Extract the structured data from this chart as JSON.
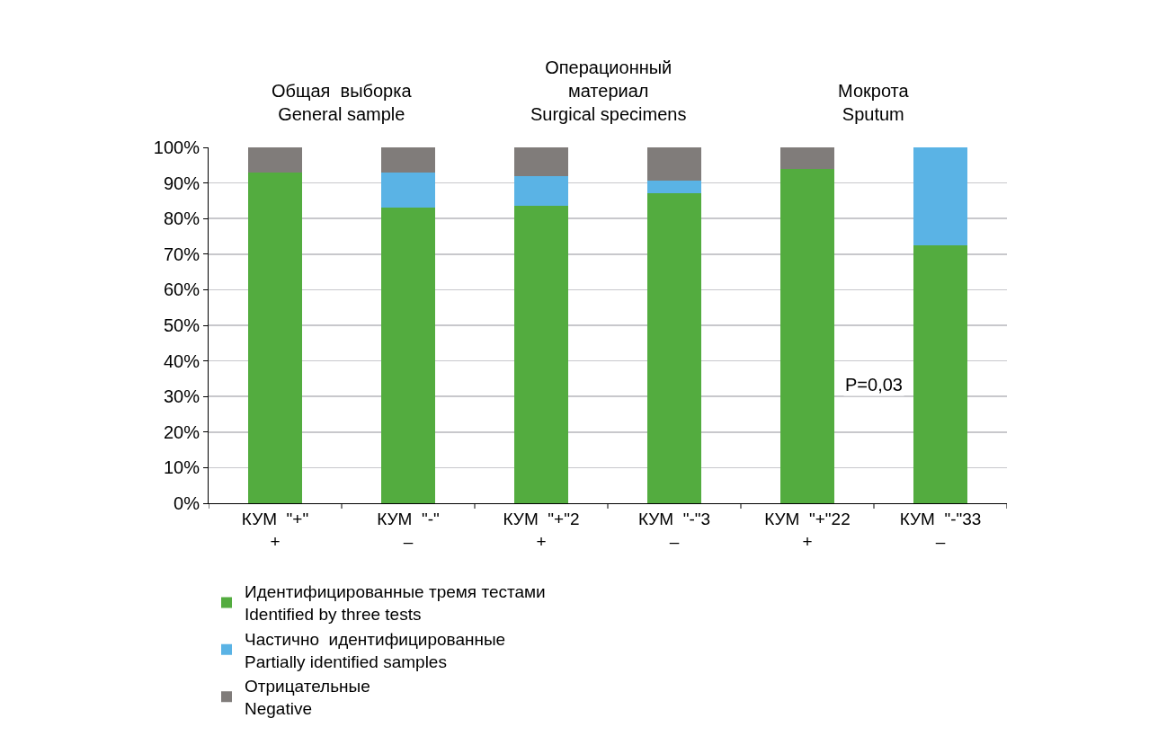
{
  "chart_data": {
    "type": "bar",
    "stacked": true,
    "categories": [
      "КУМ  \"+\"\n+",
      "КУМ  \"-\"\n–",
      "КУМ  \"+\"2\n+",
      "КУМ  \"-\"3\n–",
      "КУМ  \"+\"22\n+",
      "КУМ  \"-\"33\n–"
    ],
    "series": [
      {
        "name": "Идентифицированные тремя тестами\nIdentified by three tests",
        "color": "#53ac3f",
        "values": [
          93,
          83,
          83.5,
          87,
          94,
          72.5
        ]
      },
      {
        "name": "Частично  идентифицированные\nPartially identified samples",
        "color": "#5ab3e5",
        "values": [
          0,
          10,
          8.3,
          3.7,
          0,
          27.5
        ]
      },
      {
        "name": "Отрицательные\nNegative",
        "color": "#807c7a",
        "values": [
          7,
          7,
          8.2,
          9.3,
          6,
          0
        ]
      }
    ],
    "ylim": [
      0,
      100
    ],
    "yticks": [
      {
        "value": 0,
        "label": "0%"
      },
      {
        "value": 10,
        "label": "10%"
      },
      {
        "value": 20,
        "label": "20%"
      },
      {
        "value": 30,
        "label": "30%"
      },
      {
        "value": 40,
        "label": "40%"
      },
      {
        "value": 50,
        "label": "50%"
      },
      {
        "value": 60,
        "label": "60%"
      },
      {
        "value": 70,
        "label": "70%"
      },
      {
        "value": 80,
        "label": "80%"
      },
      {
        "value": 90,
        "label": "90%"
      },
      {
        "value": 100,
        "label": "100%"
      }
    ],
    "grid": "y",
    "legend": "bottom left",
    "annotations": [
      "Общая  выборка\nGeneral sample",
      "Операционный\nматериал\nSurgical specimens",
      "Мокрота\nSputum",
      "P=0,03"
    ]
  }
}
